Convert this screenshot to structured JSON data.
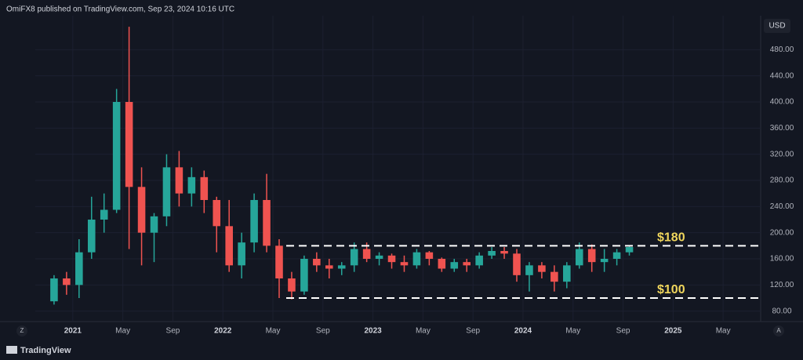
{
  "header": {
    "attribution": "OmiFX8 published on TradingView.com, Sep 23, 2024 10:16 UTC"
  },
  "footer": {
    "brand": "TradingView"
  },
  "controls": {
    "left": "Z",
    "right": "A"
  },
  "chart_data": {
    "type": "candlestick",
    "y_axis_label": "USD",
    "up_color": "#26a69a",
    "down_color": "#ef5350",
    "grid": true,
    "x": [
      "2020-11",
      "2020-12",
      "2021-01",
      "2021-02",
      "2021-03",
      "2021-04",
      "2021-05",
      "2021-06",
      "2021-07",
      "2021-08",
      "2021-09",
      "2021-10",
      "2021-11",
      "2021-12",
      "2022-01",
      "2022-02",
      "2022-03",
      "2022-04",
      "2022-05",
      "2022-06",
      "2022-07",
      "2022-08",
      "2022-09",
      "2022-10",
      "2022-11",
      "2022-12",
      "2023-01",
      "2023-02",
      "2023-03",
      "2023-04",
      "2023-05",
      "2023-06",
      "2023-07",
      "2023-08",
      "2023-09",
      "2023-10",
      "2023-11",
      "2023-12",
      "2024-01",
      "2024-02",
      "2024-03",
      "2024-04",
      "2024-05",
      "2024-06",
      "2024-07",
      "2024-08",
      "2024-09"
    ],
    "open": [
      95,
      130,
      120,
      170,
      220,
      235,
      400,
      270,
      200,
      225,
      300,
      260,
      285,
      250,
      210,
      150,
      185,
      250,
      180,
      130,
      110,
      160,
      150,
      145,
      150,
      175,
      160,
      165,
      155,
      150,
      170,
      160,
      145,
      155,
      150,
      165,
      172,
      168,
      135,
      150,
      140,
      125,
      150,
      175,
      155,
      160,
      170
    ],
    "high": [
      135,
      140,
      190,
      255,
      260,
      420,
      515,
      300,
      230,
      320,
      325,
      300,
      295,
      255,
      250,
      200,
      260,
      290,
      190,
      140,
      165,
      170,
      160,
      155,
      185,
      185,
      170,
      168,
      165,
      175,
      172,
      162,
      160,
      160,
      170,
      178,
      178,
      175,
      155,
      155,
      150,
      155,
      185,
      182,
      175,
      175,
      180
    ],
    "low": [
      90,
      105,
      100,
      160,
      200,
      230,
      175,
      150,
      155,
      210,
      240,
      240,
      230,
      170,
      140,
      130,
      170,
      170,
      100,
      98,
      105,
      140,
      130,
      135,
      140,
      155,
      150,
      145,
      140,
      145,
      150,
      140,
      140,
      140,
      145,
      160,
      160,
      125,
      110,
      130,
      110,
      115,
      145,
      140,
      140,
      150,
      165
    ],
    "close": [
      130,
      120,
      170,
      220,
      235,
      400,
      270,
      200,
      225,
      300,
      260,
      285,
      250,
      210,
      150,
      185,
      250,
      180,
      130,
      110,
      160,
      150,
      145,
      150,
      175,
      160,
      165,
      155,
      150,
      170,
      160,
      145,
      155,
      150,
      165,
      172,
      168,
      135,
      150,
      140,
      125,
      150,
      175,
      155,
      160,
      170,
      178
    ],
    "xlim": [
      "2020-10",
      "2025-08"
    ],
    "xticks": [
      {
        "value": "2021-01",
        "label": "2021"
      },
      {
        "value": "2021-05",
        "label": "May"
      },
      {
        "value": "2021-09",
        "label": "Sep"
      },
      {
        "value": "2022-01",
        "label": "2022"
      },
      {
        "value": "2022-05",
        "label": "May"
      },
      {
        "value": "2022-09",
        "label": "Sep"
      },
      {
        "value": "2023-01",
        "label": "2023"
      },
      {
        "value": "2023-05",
        "label": "May"
      },
      {
        "value": "2023-09",
        "label": "Sep"
      },
      {
        "value": "2024-01",
        "label": "2024"
      },
      {
        "value": "2024-05",
        "label": "May"
      },
      {
        "value": "2024-09",
        "label": "Sep"
      },
      {
        "value": "2025-01",
        "label": "2025"
      },
      {
        "value": "2025-05",
        "label": "May"
      }
    ],
    "ylim": [
      64,
      532
    ],
    "yticks": [
      {
        "value": 80,
        "label": "80.00"
      },
      {
        "value": 120,
        "label": "120.00"
      },
      {
        "value": 160,
        "label": "160.00"
      },
      {
        "value": 200,
        "label": "200.00"
      },
      {
        "value": 240,
        "label": "240.00"
      },
      {
        "value": 280,
        "label": "280.00"
      },
      {
        "value": 320,
        "label": "320.00"
      },
      {
        "value": 360,
        "label": "360.00"
      },
      {
        "value": 400,
        "label": "400.00"
      },
      {
        "value": 440,
        "label": "440.00"
      },
      {
        "value": 480,
        "label": "480.00"
      }
    ],
    "levels": [
      {
        "value": 180,
        "label": "$180"
      },
      {
        "value": 100,
        "label": "$100"
      }
    ]
  }
}
